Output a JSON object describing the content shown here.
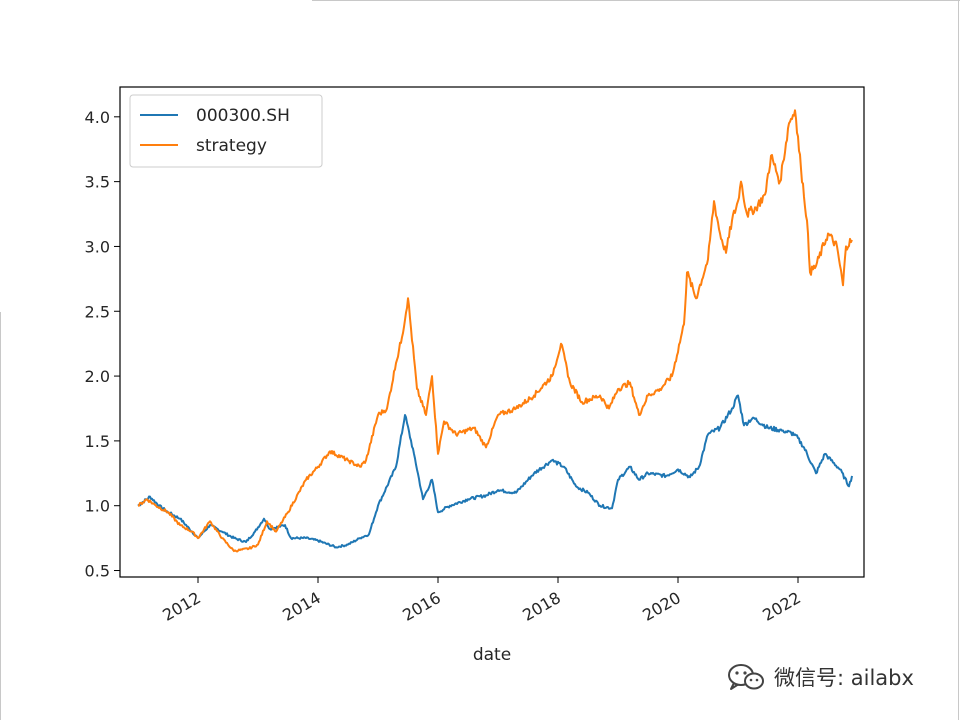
{
  "chart_data": {
    "type": "line",
    "title": "",
    "xlabel": "date",
    "ylabel": "",
    "xlim": [
      2010.7,
      2023.1
    ],
    "ylim": [
      0.45,
      4.23
    ],
    "x_ticks": [
      2012,
      2014,
      2016,
      2018,
      2020,
      2022
    ],
    "x_tick_labels": [
      "2012",
      "2014",
      "2016",
      "2018",
      "2020",
      "2022"
    ],
    "y_ticks": [
      0.5,
      1.0,
      1.5,
      2.0,
      2.5,
      3.0,
      3.5,
      4.0
    ],
    "y_tick_labels": [
      "0.5",
      "1.0",
      "1.5",
      "2.0",
      "2.5",
      "3.0",
      "3.5",
      "4.0"
    ],
    "grid": false,
    "legend_position": "top-left",
    "series": [
      {
        "name": "000300.SH",
        "color": "#1f77b4",
        "x": [
          2011.0,
          2011.2,
          2011.35,
          2011.5,
          2011.7,
          2011.9,
          2012.0,
          2012.2,
          2012.4,
          2012.6,
          2012.8,
          2012.95,
          2013.1,
          2013.2,
          2013.45,
          2013.55,
          2013.8,
          2014.0,
          2014.3,
          2014.5,
          2014.7,
          2014.85,
          2015.0,
          2015.15,
          2015.3,
          2015.45,
          2015.6,
          2015.75,
          2015.9,
          2016.0,
          2016.2,
          2016.5,
          2016.8,
          2017.0,
          2017.3,
          2017.6,
          2017.9,
          2018.1,
          2018.3,
          2018.5,
          2018.7,
          2018.9,
          2019.0,
          2019.2,
          2019.35,
          2019.5,
          2019.8,
          2020.0,
          2020.2,
          2020.35,
          2020.5,
          2020.7,
          2020.9,
          2021.0,
          2021.1,
          2021.25,
          2021.5,
          2021.75,
          2021.95,
          2022.1,
          2022.3,
          2022.45,
          2022.55,
          2022.7,
          2022.85,
          2022.9
        ],
        "values": [
          1.0,
          1.07,
          1.0,
          0.95,
          0.9,
          0.8,
          0.75,
          0.85,
          0.8,
          0.75,
          0.72,
          0.8,
          0.9,
          0.82,
          0.85,
          0.75,
          0.75,
          0.73,
          0.68,
          0.7,
          0.75,
          0.78,
          1.0,
          1.15,
          1.3,
          1.7,
          1.4,
          1.05,
          1.2,
          0.95,
          1.0,
          1.05,
          1.08,
          1.12,
          1.1,
          1.25,
          1.35,
          1.3,
          1.15,
          1.1,
          1.0,
          0.98,
          1.2,
          1.3,
          1.2,
          1.25,
          1.23,
          1.28,
          1.22,
          1.3,
          1.55,
          1.6,
          1.75,
          1.85,
          1.62,
          1.68,
          1.6,
          1.58,
          1.55,
          1.45,
          1.25,
          1.4,
          1.35,
          1.28,
          1.15,
          1.23
        ]
      },
      {
        "name": "strategy",
        "color": "#ff7f0e",
        "x": [
          2011.0,
          2011.15,
          2011.3,
          2011.5,
          2011.7,
          2011.9,
          2012.0,
          2012.2,
          2012.4,
          2012.6,
          2012.85,
          2013.0,
          2013.15,
          2013.3,
          2013.5,
          2013.8,
          2014.0,
          2014.2,
          2014.5,
          2014.7,
          2014.8,
          2015.0,
          2015.15,
          2015.3,
          2015.4,
          2015.5,
          2015.65,
          2015.8,
          2015.9,
          2016.0,
          2016.1,
          2016.3,
          2016.6,
          2016.8,
          2017.0,
          2017.3,
          2017.6,
          2017.9,
          2018.05,
          2018.2,
          2018.4,
          2018.7,
          2018.85,
          2019.0,
          2019.2,
          2019.35,
          2019.5,
          2019.7,
          2019.9,
          2020.1,
          2020.15,
          2020.3,
          2020.5,
          2020.6,
          2020.7,
          2020.8,
          2020.9,
          2021.0,
          2021.05,
          2021.15,
          2021.3,
          2021.45,
          2021.55,
          2021.7,
          2021.85,
          2021.95,
          2022.05,
          2022.15,
          2022.2,
          2022.3,
          2022.5,
          2022.65,
          2022.75,
          2022.8,
          2022.9
        ],
        "values": [
          1.0,
          1.05,
          1.0,
          0.95,
          0.85,
          0.8,
          0.75,
          0.88,
          0.75,
          0.65,
          0.67,
          0.7,
          0.88,
          0.8,
          0.95,
          1.2,
          1.3,
          1.42,
          1.35,
          1.3,
          1.35,
          1.7,
          1.75,
          2.1,
          2.3,
          2.6,
          1.9,
          1.7,
          2.0,
          1.4,
          1.65,
          1.55,
          1.6,
          1.45,
          1.7,
          1.75,
          1.85,
          2.0,
          2.25,
          1.95,
          1.8,
          1.85,
          1.75,
          1.9,
          1.95,
          1.7,
          1.85,
          1.9,
          2.0,
          2.4,
          2.8,
          2.6,
          2.9,
          3.35,
          3.1,
          2.95,
          3.2,
          3.35,
          3.5,
          3.25,
          3.3,
          3.4,
          3.7,
          3.5,
          3.95,
          4.05,
          3.6,
          3.2,
          2.8,
          2.85,
          3.1,
          3.0,
          2.7,
          3.0,
          3.05
        ]
      }
    ]
  },
  "watermark": {
    "text": "微信号: ailabx",
    "icon": "wechat-icon"
  }
}
